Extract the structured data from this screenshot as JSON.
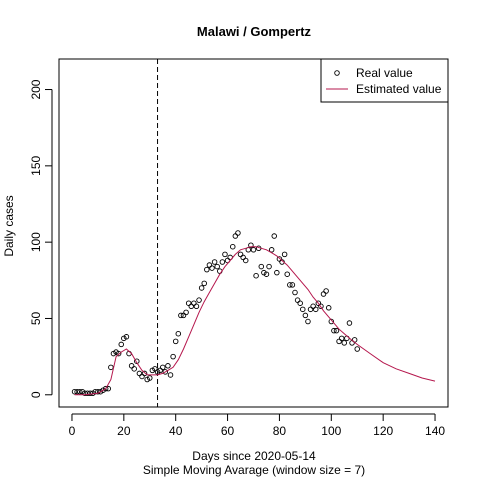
{
  "chart_data": {
    "type": "scatter",
    "title": "Malawi / Gompertz",
    "xlabel": "Days since 2020-05-14",
    "xlabel_sub": "Simple Moving Avarage (window size = 7)",
    "ylabel": "Daily cases",
    "xlim": [
      -5,
      145
    ],
    "ylim": [
      -8,
      220
    ],
    "x_ticks": [
      0,
      20,
      40,
      60,
      80,
      100,
      120,
      140
    ],
    "x_tick_labels": [
      "0",
      "20",
      "40",
      "60",
      "80",
      "100",
      "120",
      "140"
    ],
    "y_ticks": [
      0,
      50,
      100,
      150,
      200
    ],
    "y_tick_labels": [
      "0",
      "50",
      "100",
      "150",
      "200"
    ],
    "vline_x": 33,
    "grid": false,
    "legend_position": "top-right",
    "legend": [
      {
        "label": "Real value",
        "marker": "open-circle",
        "color": "#000000"
      },
      {
        "label": "Estimated value",
        "marker": "line",
        "color": "#b5174d"
      }
    ],
    "series": [
      {
        "name": "Real value",
        "kind": "points",
        "color": "#000000",
        "x": [
          1,
          2,
          3,
          4,
          5,
          6,
          7,
          8,
          9,
          10,
          11,
          12,
          13,
          14,
          15,
          16,
          17,
          18,
          19,
          20,
          21,
          22,
          23,
          24,
          25,
          26,
          27,
          28,
          29,
          30,
          31,
          32,
          33,
          34,
          35,
          36,
          37,
          38,
          39,
          40,
          41,
          42,
          43,
          44,
          45,
          46,
          47,
          48,
          49,
          50,
          51,
          52,
          53,
          54,
          55,
          56,
          57,
          58,
          59,
          60,
          61,
          62,
          63,
          64,
          65,
          66,
          67,
          68,
          69,
          70,
          71,
          72,
          73,
          74,
          75,
          76,
          77,
          78,
          79,
          80,
          81,
          82,
          83,
          84,
          85,
          86,
          87,
          88,
          89,
          90,
          91,
          92,
          93,
          94,
          95,
          96,
          97,
          98,
          99,
          100,
          101,
          102,
          103,
          104,
          105,
          106,
          107,
          108,
          109,
          110
        ],
        "y": [
          2,
          2,
          2,
          2,
          1,
          1,
          1,
          1,
          2,
          2,
          2,
          3,
          4,
          4,
          18,
          27,
          28,
          27,
          33,
          37,
          38,
          27,
          19,
          17,
          22,
          14,
          12,
          14,
          10,
          11,
          16,
          17,
          15,
          16,
          18,
          15,
          19,
          13,
          25,
          35,
          40,
          52,
          52,
          54,
          60,
          58,
          60,
          58,
          62,
          70,
          73,
          82,
          85,
          83,
          87,
          84,
          81,
          87,
          92,
          88,
          90,
          97,
          104,
          106,
          92,
          90,
          88,
          95,
          98,
          95,
          78,
          96,
          84,
          80,
          79,
          84,
          95,
          104,
          80,
          89,
          87,
          92,
          79,
          72,
          72,
          67,
          62,
          60,
          56,
          52,
          48,
          56,
          58,
          56,
          60,
          58,
          66,
          68,
          57,
          48,
          42,
          42,
          35,
          37,
          34,
          37,
          47,
          34,
          36,
          30
        ]
      },
      {
        "name": "Estimated value",
        "kind": "line",
        "color": "#b5174d",
        "x": [
          1,
          5,
          10,
          13,
          15,
          17,
          19,
          21,
          23,
          25,
          27,
          29,
          31,
          33,
          35,
          37,
          39,
          41,
          43,
          45,
          47,
          49,
          51,
          53,
          55,
          57,
          59,
          61,
          63,
          65,
          67,
          69,
          71,
          73,
          75,
          77,
          79,
          81,
          83,
          85,
          87,
          89,
          91,
          93,
          95,
          97,
          99,
          101,
          103,
          105,
          107,
          110,
          115,
          120,
          125,
          130,
          135,
          140
        ],
        "y": [
          0,
          0,
          1,
          4,
          10,
          25,
          28,
          30,
          27,
          21,
          16,
          13,
          13,
          13,
          14,
          16,
          18,
          23,
          30,
          38,
          46,
          54,
          61,
          67,
          73,
          79,
          84,
          88,
          92,
          95,
          96,
          97,
          97,
          96,
          95,
          93,
          91,
          88,
          85,
          81,
          77,
          73,
          69,
          64,
          60,
          55,
          51,
          47,
          43,
          40,
          37,
          33,
          27,
          21,
          17,
          14,
          11,
          9
        ]
      }
    ]
  }
}
